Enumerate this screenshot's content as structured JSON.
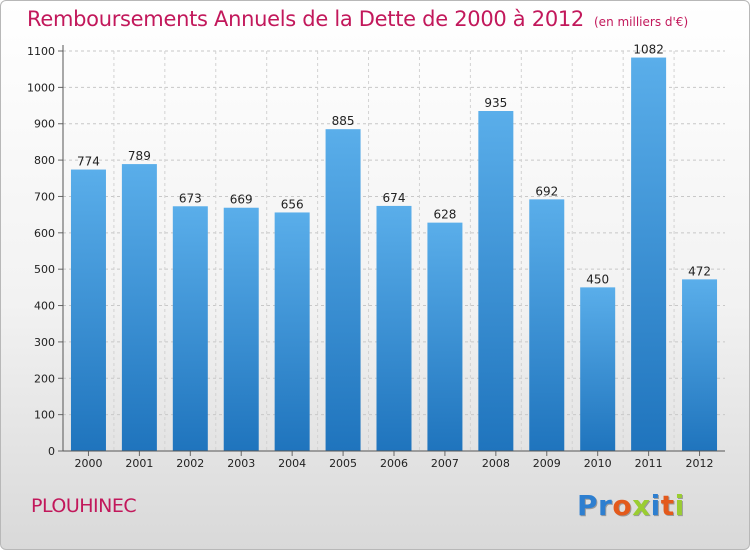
{
  "chart_data": {
    "type": "bar",
    "title": "Remboursements Annuels de la Dette de 2000 à 2012",
    "subtitle": "(en milliers d'€)",
    "categories": [
      "2000",
      "2001",
      "2002",
      "2003",
      "2004",
      "2005",
      "2006",
      "2007",
      "2008",
      "2009",
      "2010",
      "2011",
      "2012"
    ],
    "values": [
      774,
      789,
      673,
      669,
      656,
      885,
      674,
      628,
      935,
      692,
      450,
      1082,
      472
    ],
    "ylim": [
      0,
      1100
    ],
    "yticks": [
      0,
      100,
      200,
      300,
      400,
      500,
      600,
      700,
      800,
      900,
      1000,
      1100
    ],
    "grid": true,
    "bar_color": "#3a8fd6"
  },
  "footer": {
    "city": "PLOUHINEC",
    "logo": [
      {
        "char": "P",
        "color": "#2e7fd0"
      },
      {
        "char": "r",
        "color": "#2e7fd0"
      },
      {
        "char": "o",
        "color": "#e35a1c"
      },
      {
        "char": "x",
        "color": "#9acd32"
      },
      {
        "char": "i",
        "color": "#2e7fd0"
      },
      {
        "char": "t",
        "color": "#e35a1c"
      },
      {
        "char": "i",
        "color": "#9acd32"
      }
    ]
  }
}
